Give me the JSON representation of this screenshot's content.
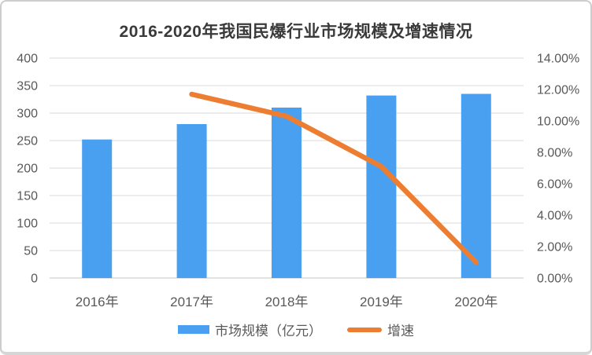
{
  "title": "2016-2020年我国民爆行业市场规模及增速情况",
  "chart_data": {
    "type": "combo",
    "title": "2016-2020年我国民爆行业市场规模及增速情况",
    "categories": [
      "2016年",
      "2017年",
      "2018年",
      "2019年",
      "2020年"
    ],
    "series": [
      {
        "name": "市场规模（亿元）",
        "type": "bar",
        "axis": "left",
        "color": "#4AA0F0",
        "values": [
          252,
          280,
          310,
          332,
          335
        ]
      },
      {
        "name": "增速",
        "type": "line",
        "axis": "right",
        "color": "#ED7D31",
        "values": [
          null,
          11.7,
          10.3,
          7.1,
          1.0
        ]
      }
    ],
    "left_axis": {
      "min": 0,
      "max": 400,
      "step": 50,
      "ticks": [
        {
          "label": "400",
          "value": 400
        },
        {
          "label": "350",
          "value": 350
        },
        {
          "label": "300",
          "value": 300
        },
        {
          "label": "250",
          "value": 250
        },
        {
          "label": "200",
          "value": 200
        },
        {
          "label": "150",
          "value": 150
        },
        {
          "label": "100",
          "value": 100
        },
        {
          "label": "50",
          "value": 50
        },
        {
          "label": "0",
          "value": 0
        }
      ]
    },
    "right_axis": {
      "min": 0,
      "max": 14,
      "step": 2,
      "ticks": [
        {
          "label": "14.00%",
          "value": 14
        },
        {
          "label": "12.00%",
          "value": 12
        },
        {
          "label": "10.00%",
          "value": 10
        },
        {
          "label": "8.00%",
          "value": 8
        },
        {
          "label": "6.00%",
          "value": 6
        },
        {
          "label": "4.00%",
          "value": 4
        },
        {
          "label": "2.00%",
          "value": 2
        },
        {
          "label": "0.00%",
          "value": 0
        }
      ]
    },
    "grid": true,
    "legend_position": "bottom"
  },
  "colors": {
    "bar": "#4AA0F0",
    "line": "#ED7D31",
    "gridline": "#D9D9D9",
    "axis_line": "#D9D9D9",
    "axis_text": "#595959",
    "title_text": "#3A3A3A",
    "card_border": "#CDCDCD",
    "background": "#FFFFFF"
  }
}
